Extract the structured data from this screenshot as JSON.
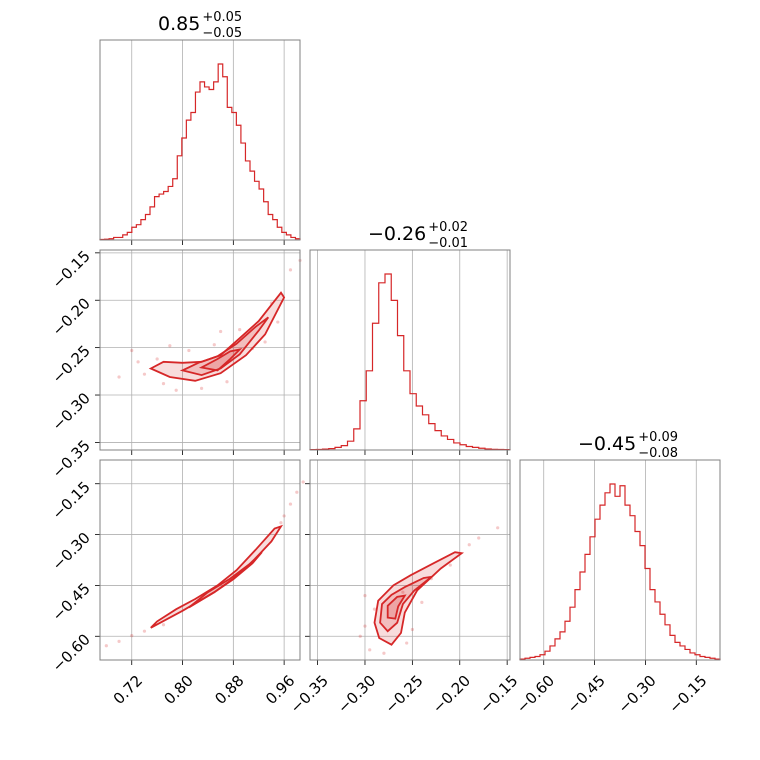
{
  "chart_data": {
    "type": "corner",
    "accent_color": "#d62728",
    "grid": true,
    "parameters": [
      {
        "index": 0,
        "title": {
          "median": "0.85",
          "plus": "+0.05",
          "minus": "−0.05"
        },
        "range": [
          0.67,
          0.985
        ],
        "ticks": [
          {
            "value": 0.72,
            "label": "0.72"
          },
          {
            "value": 0.8,
            "label": "0.80"
          },
          {
            "value": 0.88,
            "label": "0.88"
          },
          {
            "value": 0.96,
            "label": "0.96"
          }
        ]
      },
      {
        "index": 1,
        "title": {
          "median": "−0.26",
          "plus": "+0.02",
          "minus": "−0.01"
        },
        "range": [
          -0.358,
          -0.147
        ],
        "ticks": [
          {
            "value": -0.35,
            "label": "−0.35"
          },
          {
            "value": -0.3,
            "label": "−0.30"
          },
          {
            "value": -0.25,
            "label": "−0.25"
          },
          {
            "value": -0.2,
            "label": "−0.20"
          },
          {
            "value": -0.15,
            "label": "−0.15"
          }
        ]
      },
      {
        "index": 2,
        "title": {
          "median": "−0.45",
          "plus": "+0.09",
          "minus": "−0.08"
        },
        "range": [
          -0.67,
          -0.08
        ],
        "ticks": [
          {
            "value": -0.6,
            "label": "−0.60"
          },
          {
            "value": -0.45,
            "label": "−0.45"
          },
          {
            "value": -0.3,
            "label": "−0.30"
          },
          {
            "value": -0.15,
            "label": "−0.15"
          }
        ]
      }
    ],
    "histograms": [
      {
        "param": 0,
        "heights": [
          0.2,
          0.3,
          0.5,
          1,
          1,
          2,
          3,
          5,
          6,
          8,
          10,
          13,
          17,
          18,
          19,
          21,
          24,
          33,
          40,
          47,
          50,
          58,
          62,
          60,
          59,
          62,
          69,
          64,
          52,
          50,
          45,
          38,
          31,
          27,
          23,
          20,
          15,
          10,
          8,
          5,
          3,
          2,
          1,
          0.5
        ]
      },
      {
        "param": 1,
        "heights": [
          0.2,
          0.3,
          0.5,
          0.8,
          1.5,
          2.5,
          5,
          12,
          28,
          45,
          72,
          95,
          100,
          85,
          65,
          45,
          32,
          25,
          20,
          15,
          11,
          8,
          6,
          4,
          3,
          2,
          1.5,
          1,
          0.6,
          0.4,
          0.3,
          0.2
        ]
      },
      {
        "param": 2,
        "heights": [
          0.5,
          1,
          1.5,
          2,
          3,
          5,
          8,
          12,
          16,
          22,
          30,
          40,
          50,
          60,
          70,
          80,
          88,
          95,
          100,
          93,
          99,
          88,
          82,
          73,
          65,
          52,
          40,
          33,
          26,
          20,
          14,
          10,
          8,
          6,
          4,
          3,
          2,
          1.5,
          1,
          0.5
        ]
      }
    ],
    "pairs": [
      {
        "x_param": 0,
        "y_param": 1,
        "contours": [
          [
            [
              0.75,
              -0.272
            ],
            [
              0.78,
              -0.281
            ],
            [
              0.82,
              -0.285
            ],
            [
              0.86,
              -0.277
            ],
            [
              0.9,
              -0.258
            ],
            [
              0.93,
              -0.236
            ],
            [
              0.96,
              -0.197
            ],
            [
              0.955,
              -0.192
            ],
            [
              0.92,
              -0.222
            ],
            [
              0.89,
              -0.24
            ],
            [
              0.86,
              -0.258
            ],
            [
              0.83,
              -0.265
            ],
            [
              0.8,
              -0.266
            ],
            [
              0.77,
              -0.265
            ]
          ],
          [
            [
              0.8,
              -0.274
            ],
            [
              0.83,
              -0.279
            ],
            [
              0.86,
              -0.272
            ],
            [
              0.89,
              -0.257
            ],
            [
              0.92,
              -0.232
            ],
            [
              0.935,
              -0.218
            ],
            [
              0.915,
              -0.228
            ],
            [
              0.885,
              -0.246
            ],
            [
              0.855,
              -0.259
            ],
            [
              0.825,
              -0.266
            ]
          ],
          [
            [
              0.83,
              -0.271
            ],
            [
              0.855,
              -0.274
            ],
            [
              0.875,
              -0.262
            ],
            [
              0.89,
              -0.252
            ],
            [
              0.875,
              -0.254
            ],
            [
              0.855,
              -0.262
            ]
          ]
        ],
        "samples": [
          [
            0.72,
            -0.253
          ],
          [
            0.73,
            -0.265
          ],
          [
            0.74,
            -0.278
          ],
          [
            0.76,
            -0.262
          ],
          [
            0.77,
            -0.288
          ],
          [
            0.79,
            -0.295
          ],
          [
            0.81,
            -0.253
          ],
          [
            0.83,
            -0.293
          ],
          [
            0.85,
            -0.247
          ],
          [
            0.87,
            -0.286
          ],
          [
            0.89,
            -0.231
          ],
          [
            0.91,
            -0.251
          ],
          [
            0.94,
            -0.203
          ],
          [
            0.95,
            -0.223
          ],
          [
            0.97,
            -0.168
          ],
          [
            0.985,
            -0.158
          ],
          [
            0.7,
            -0.281
          ],
          [
            0.78,
            -0.248
          ],
          [
            0.86,
            -0.233
          ],
          [
            0.93,
            -0.244
          ]
        ]
      },
      {
        "x_param": 0,
        "y_param": 2,
        "contours": [
          [
            [
              0.75,
              -0.575
            ],
            [
              0.8,
              -0.525
            ],
            [
              0.85,
              -0.47
            ],
            [
              0.88,
              -0.43
            ],
            [
              0.91,
              -0.38
            ],
            [
              0.94,
              -0.32
            ],
            [
              0.955,
              -0.276
            ],
            [
              0.945,
              -0.282
            ],
            [
              0.915,
              -0.345
            ],
            [
              0.885,
              -0.405
            ],
            [
              0.855,
              -0.45
            ],
            [
              0.82,
              -0.49
            ],
            [
              0.79,
              -0.52
            ],
            [
              0.76,
              -0.556
            ]
          ],
          [
            [
              0.81,
              -0.515
            ],
            [
              0.85,
              -0.47
            ],
            [
              0.88,
              -0.432
            ],
            [
              0.91,
              -0.385
            ],
            [
              0.925,
              -0.352
            ],
            [
              0.905,
              -0.388
            ],
            [
              0.875,
              -0.43
            ],
            [
              0.84,
              -0.47
            ]
          ]
        ],
        "samples": [
          [
            0.68,
            -0.628
          ],
          [
            0.7,
            -0.615
          ],
          [
            0.72,
            -0.598
          ],
          [
            0.74,
            -0.585
          ],
          [
            0.77,
            -0.566
          ],
          [
            0.97,
            -0.21
          ],
          [
            0.98,
            -0.175
          ],
          [
            0.99,
            -0.145
          ],
          [
            0.96,
            -0.245
          ],
          [
            0.955,
            -0.265
          ]
        ]
      },
      {
        "x_param": 1,
        "y_param": 2,
        "contours": [
          [
            [
              -0.286,
              -0.495
            ],
            [
              -0.29,
              -0.56
            ],
            [
              -0.285,
              -0.605
            ],
            [
              -0.272,
              -0.625
            ],
            [
              -0.262,
              -0.59
            ],
            [
              -0.258,
              -0.53
            ],
            [
              -0.245,
              -0.465
            ],
            [
              -0.22,
              -0.4
            ],
            [
              -0.198,
              -0.355
            ],
            [
              -0.205,
              -0.352
            ],
            [
              -0.228,
              -0.385
            ],
            [
              -0.252,
              -0.42
            ],
            [
              -0.27,
              -0.45
            ]
          ],
          [
            [
              -0.282,
              -0.505
            ],
            [
              -0.284,
              -0.56
            ],
            [
              -0.276,
              -0.585
            ],
            [
              -0.266,
              -0.56
            ],
            [
              -0.26,
              -0.505
            ],
            [
              -0.248,
              -0.465
            ],
            [
              -0.23,
              -0.425
            ],
            [
              -0.238,
              -0.428
            ],
            [
              -0.258,
              -0.455
            ],
            [
              -0.272,
              -0.478
            ]
          ],
          [
            [
              -0.276,
              -0.51
            ],
            [
              -0.276,
              -0.545
            ],
            [
              -0.268,
              -0.548
            ],
            [
              -0.265,
              -0.512
            ],
            [
              -0.258,
              -0.48
            ],
            [
              -0.266,
              -0.484
            ]
          ]
        ],
        "samples": [
          [
            -0.3,
            -0.57
          ],
          [
            -0.305,
            -0.6
          ],
          [
            -0.295,
            -0.64
          ],
          [
            -0.28,
            -0.65
          ],
          [
            -0.29,
            -0.52
          ],
          [
            -0.256,
            -0.62
          ],
          [
            -0.25,
            -0.58
          ],
          [
            -0.24,
            -0.5
          ],
          [
            -0.26,
            -0.47
          ],
          [
            -0.19,
            -0.33
          ],
          [
            -0.18,
            -0.31
          ],
          [
            -0.16,
            -0.28
          ],
          [
            -0.21,
            -0.39
          ],
          [
            -0.23,
            -0.43
          ],
          [
            -0.3,
            -0.48
          ]
        ]
      }
    ]
  }
}
